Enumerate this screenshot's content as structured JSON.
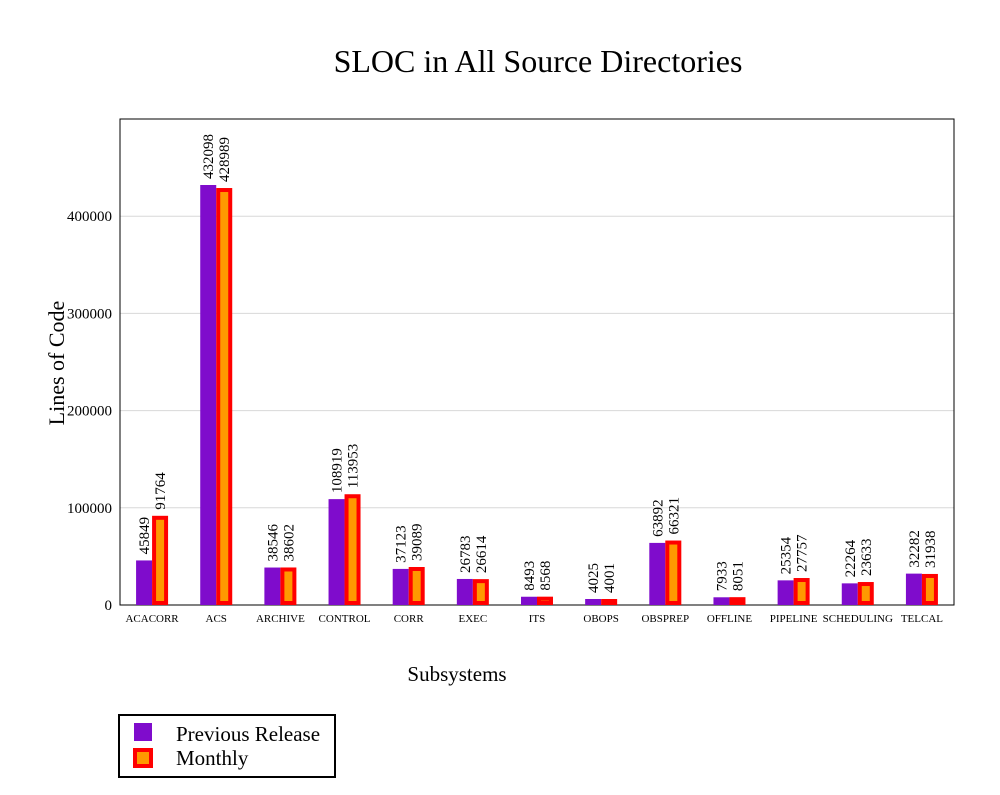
{
  "chart_data": {
    "type": "bar",
    "title": "SLOC in All Source Directories",
    "xlabel": "Subsystems",
    "ylabel": "Lines of Code",
    "ylim": [
      0,
      500000
    ],
    "yticks": [
      0,
      100000,
      200000,
      300000,
      400000
    ],
    "ytick_labels": [
      "0",
      "100000",
      "200000",
      "300000",
      "400000"
    ],
    "grid": true,
    "legend_position": "bottom-left",
    "categories": [
      "ACACORR",
      "ACS",
      "ARCHIVE",
      "CONTROL",
      "CORR",
      "EXEC",
      "ITS",
      "OBOPS",
      "OBSPREP",
      "OFFLINE",
      "PIPELINE",
      "SCHEDULING",
      "TELCAL"
    ],
    "series": [
      {
        "name": "Previous Release",
        "color": "#7f0ccc",
        "values": [
          45849,
          432098,
          38546,
          108919,
          37123,
          26783,
          8493,
          4025,
          63892,
          7933,
          25354,
          22264,
          32282
        ]
      },
      {
        "name": "Monthly",
        "color": "#ff9900",
        "border": "#ff0000",
        "values": [
          91764,
          428989,
          38602,
          113953,
          39089,
          26614,
          8568,
          4001,
          66321,
          8051,
          27757,
          23633,
          31938
        ]
      }
    ]
  }
}
